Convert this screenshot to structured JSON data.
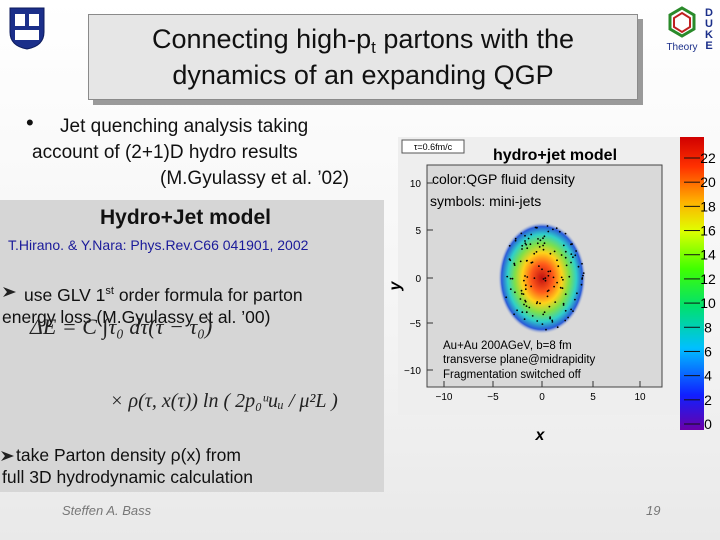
{
  "header": {
    "title_line1": "Connecting high-p",
    "title_subscript": "t",
    "title_line1_end": " partons with the",
    "title_line2": "dynamics of an expanding QGP"
  },
  "logo": {
    "letters": [
      "D",
      "U",
      "K",
      "E"
    ],
    "caption": "Theory"
  },
  "bullet": {
    "lines": [
      "Jet quenching analysis taking",
      "account of (2+1)D hydro results",
      "(M.Gyulassy et al. ’02)"
    ]
  },
  "panel": {
    "title": "Hydro+Jet model",
    "reference": "T.Hirano. & Y.Nara: Phys.Rev.C66 041901, 2002",
    "item1": {
      "text": "use GLV 1",
      "sup": "st",
      "text_end": " order formula for parton",
      "line2": "energy loss (M.Gyulassy et al. ’00)"
    },
    "formula": {
      "line1": "ΔE  =  C ∫τ₀ dτ(τ − τ₀)",
      "line2": "× ρ(τ, x(τ)) ln ( 2p₀ᵘuᵤ / μ²L )"
    },
    "item2": {
      "lines": [
        "take Parton density ρ(x) from",
        "full 3D hydrodynamic calculation"
      ]
    }
  },
  "figure": {
    "time_label": "τ=0.6fm/c",
    "title": "hydro+jet model",
    "legend": [
      "color:QGP fluid density",
      "symbols: mini-jets"
    ],
    "notes": [
      "Au+Au 200AGeV, b=8 fm",
      "transverse plane@midrapidity",
      "Fragmentation switched off"
    ],
    "x_label": "x",
    "y_label": "y",
    "x_ticks": [
      "−10",
      "−5",
      "0",
      "5",
      "10"
    ],
    "y_ticks": [
      "10",
      "5",
      "0",
      "−5",
      "−10"
    ],
    "colorbar_ticks": [
      "22",
      "20",
      "18",
      "16",
      "14",
      "12",
      "10",
      "8",
      "6",
      "4",
      "2",
      "0"
    ]
  },
  "footer": {
    "author": "Steffen A. Bass",
    "page": "19"
  }
}
